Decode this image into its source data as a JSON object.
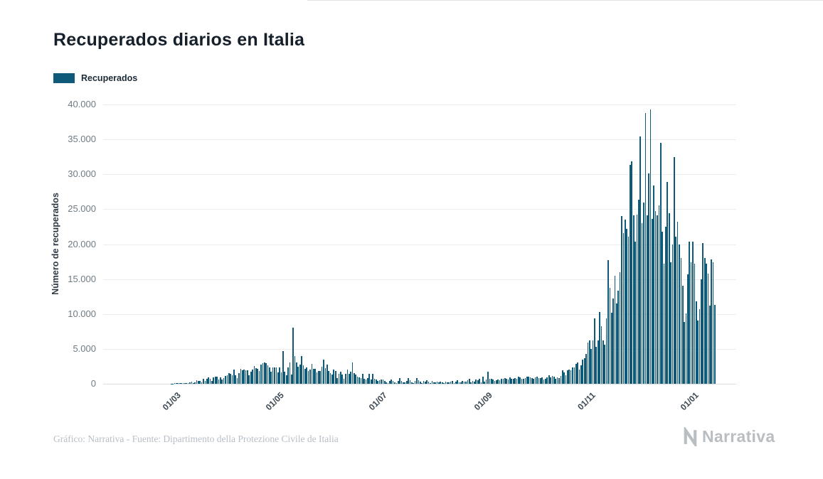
{
  "page": {
    "title": "Recuperados diarios en Italia",
    "footer": "Gráfico: Narrativa - Fuente: Dipartimento della Protezione Civile de Italia",
    "brand": "Narrativa"
  },
  "legend": {
    "label": "Recuperados",
    "color": "#0e5a78"
  },
  "chart_data": {
    "type": "bar",
    "title": "Recuperados diarios en Italia",
    "xlabel": "",
    "ylabel": "Número de recuperados",
    "ylim": [
      0,
      40000
    ],
    "grid": true,
    "legend_position": "top-left",
    "bar_color": "#0e5a78",
    "series_name": "Recuperados",
    "x_frequency": "daily",
    "x_start": "2020-02-26",
    "x_end": "2021-01-13",
    "y_ticks": [
      {
        "label": "0",
        "value": 0
      },
      {
        "label": "5.000",
        "value": 5000
      },
      {
        "label": "10.000",
        "value": 10000
      },
      {
        "label": "15.000",
        "value": 15000
      },
      {
        "label": "20.000",
        "value": 20000
      },
      {
        "label": "25.000",
        "value": 25000
      },
      {
        "label": "30.000",
        "value": 30000
      },
      {
        "label": "35.000",
        "value": 35000
      },
      {
        "label": "40.000",
        "value": 40000
      }
    ],
    "x_ticks": [
      {
        "label": "01/03",
        "pos": 0.115
      },
      {
        "label": "01/05",
        "pos": 0.278
      },
      {
        "label": "01/07",
        "pos": 0.441
      },
      {
        "label": "01/09",
        "pos": 0.607
      },
      {
        "label": "01/11",
        "pos": 0.77
      },
      {
        "label": "01/01",
        "pos": 0.933
      }
    ],
    "bars_start": 0.104,
    "bars_end": 0.968,
    "values": [
      0,
      45,
      46,
      61,
      83,
      66,
      110,
      138,
      109,
      66,
      133,
      102,
      241,
      321,
      141,
      181,
      527,
      369,
      414,
      192,
      684,
      415,
      689,
      943,
      752,
      408,
      894,
      1036,
      999,
      589,
      934,
      646,
      819,
      1109,
      1228,
      1480,
      1431,
      1238,
      2079,
      1238,
      819,
      1555,
      2099,
      1979,
      2079,
      1985,
      1984,
      1224,
      1695,
      2072,
      2563,
      2200,
      2128,
      1822,
      2723,
      2943,
      3033,
      2922,
      2622,
      2317,
      1696,
      2317,
      2311,
      2304,
      1665,
      2304,
      1665,
      4693,
      1740,
      1225,
      2352,
      3031,
      1327,
      8014,
      4008,
      3041,
      2452,
      2747,
      3957,
      2605,
      2159,
      2366,
      1836,
      2075,
      2881,
      2160,
      2120,
      1639,
      1808,
      1874,
      2436,
      3503,
      2240,
      2789,
      1874,
      1505,
      1355,
      2062,
      1873,
      846,
      1399,
      1747,
      1297,
      747,
      1467,
      2062,
      1399,
      1747,
      3038,
      1505,
      1355,
      1062,
      873,
      846,
      1399,
      747,
      597,
      767,
      1467,
      662,
      1399,
      747,
      597,
      367,
      467,
      662,
      574,
      366,
      245,
      129,
      369,
      574,
      366,
      245,
      129,
      369,
      786,
      366,
      245,
      164,
      369,
      786,
      466,
      245,
      129,
      369,
      786,
      466,
      275,
      129,
      369,
      286,
      466,
      275,
      129,
      369,
      226,
      175,
      275,
      159,
      347,
      252,
      138,
      305,
      225,
      172,
      347,
      412,
      138,
      305,
      525,
      172,
      247,
      412,
      338,
      305,
      525,
      688,
      247,
      412,
      338,
      583,
      525,
      688,
      247,
      1046,
      338,
      583,
      1695,
      738,
      688,
      647,
      412,
      538,
      583,
      525,
      688,
      747,
      812,
      738,
      583,
      925,
      688,
      747,
      812,
      738,
      1008,
      925,
      688,
      747,
      812,
      1038,
      1008,
      925,
      798,
      747,
      912,
      1038,
      822,
      823,
      910,
      622,
      733,
      901,
      1186,
      925,
      1115,
      1044,
      725,
      937,
      850,
      1121,
      1899,
      1585,
      1246,
      1908,
      2046,
      1907,
      2352,
      2369,
      2824,
      3032,
      2086,
      2686,
      3416,
      3652,
      4285,
      5859,
      6258,
      4961,
      6183,
      9398,
      5335,
      6258,
      10271,
      8239,
      6183,
      5557,
      9398,
      17668,
      13708,
      10215,
      12196,
      15434,
      11480,
      13329,
      16026,
      24031,
      21554,
      23474,
      22173,
      21035,
      31395,
      31819,
      24169,
      20315,
      24214,
      26323,
      35467,
      23004,
      25935,
      38740,
      24077,
      30099,
      39266,
      23623,
      28352,
      24728,
      24169,
      25576,
      34477,
      21731,
      17186,
      22456,
      28904,
      24476,
      17421,
      19903,
      32510,
      21035,
      23257,
      19903,
      18025,
      14063,
      8861,
      10030,
      15659,
      20315,
      17421,
      20331,
      17220,
      11831,
      9089,
      10665,
      14970,
      20166,
      18020,
      17246,
      15729,
      11174,
      17771,
      17428,
      11252
    ]
  }
}
